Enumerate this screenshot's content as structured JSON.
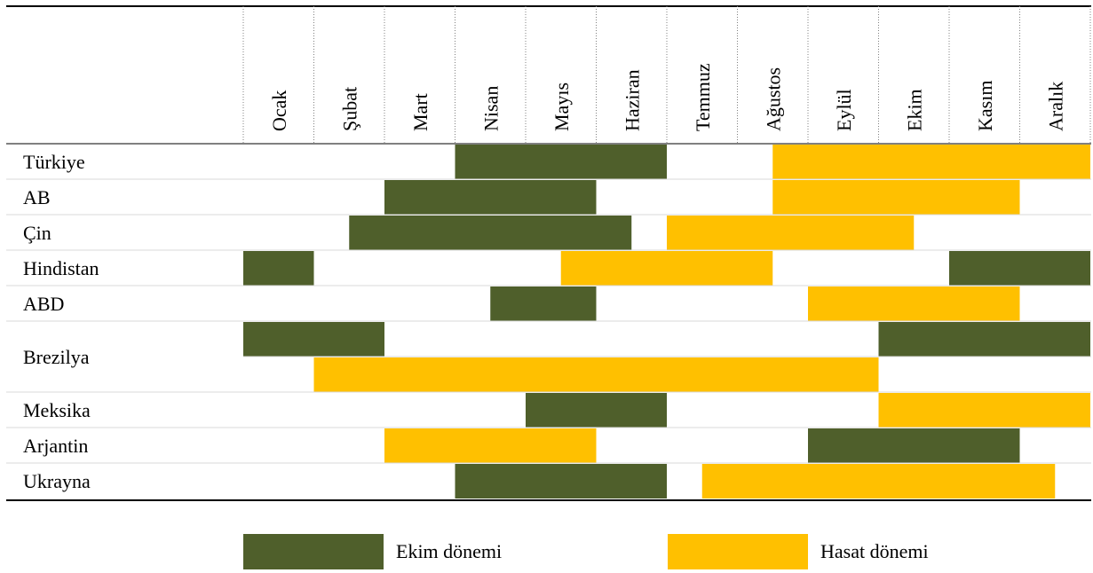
{
  "chart_data": {
    "type": "gantt",
    "months": [
      "Ocak",
      "Şubat",
      "Mart",
      "Nisan",
      "Mayıs",
      "Haziran",
      "Temmuz",
      "Ağustos",
      "Eylül",
      "Ekim",
      "Kasım",
      "Aralık"
    ],
    "colors": {
      "ekim": "#4f5f2b",
      "hasat": "#ffc000"
    },
    "rows": [
      {
        "country": "Türkiye",
        "lines": [
          [
            {
              "type": "ekim",
              "from": 4,
              "to": 6
            },
            {
              "type": "hasat",
              "from": 8.5,
              "to": 12
            }
          ]
        ]
      },
      {
        "country": "AB",
        "lines": [
          [
            {
              "type": "ekim",
              "from": 3,
              "to": 5
            },
            {
              "type": "hasat",
              "from": 8.5,
              "to": 11
            }
          ]
        ]
      },
      {
        "country": "Çin",
        "lines": [
          [
            {
              "type": "ekim",
              "from": 2.5,
              "to": 5.5
            },
            {
              "type": "hasat",
              "from": 7,
              "to": 9.5
            }
          ]
        ]
      },
      {
        "country": "Hindistan",
        "lines": [
          [
            {
              "type": "ekim",
              "from": 1,
              "to": 1
            },
            {
              "type": "hasat",
              "from": 5.5,
              "to": 7.5
            },
            {
              "type": "ekim",
              "from": 11,
              "to": 12
            }
          ]
        ]
      },
      {
        "country": "ABD",
        "lines": [
          [
            {
              "type": "ekim",
              "from": 4.5,
              "to": 5
            },
            {
              "type": "hasat",
              "from": 9,
              "to": 11
            }
          ]
        ]
      },
      {
        "country": "Brezilya",
        "lines": [
          [
            {
              "type": "ekim",
              "from": 1,
              "to": 2
            },
            {
              "type": "ekim",
              "from": 10,
              "to": 12
            }
          ],
          [
            {
              "type": "hasat",
              "from": 2,
              "to": 9
            }
          ]
        ]
      },
      {
        "country": "Meksika",
        "lines": [
          [
            {
              "type": "ekim",
              "from": 5,
              "to": 6
            },
            {
              "type": "hasat",
              "from": 10,
              "to": 12
            }
          ]
        ]
      },
      {
        "country": "Arjantin",
        "lines": [
          [
            {
              "type": "hasat",
              "from": 3,
              "to": 5
            },
            {
              "type": "ekim",
              "from": 9,
              "to": 11
            }
          ]
        ]
      },
      {
        "country": "Ukrayna",
        "lines": [
          [
            {
              "type": "ekim",
              "from": 4,
              "to": 6
            },
            {
              "type": "hasat",
              "from": 7.5,
              "to": 11.5
            }
          ]
        ]
      }
    ],
    "legend": [
      {
        "type": "ekim",
        "label": "Ekim dönemi"
      },
      {
        "type": "hasat",
        "label": "Hasat dönemi"
      }
    ]
  }
}
